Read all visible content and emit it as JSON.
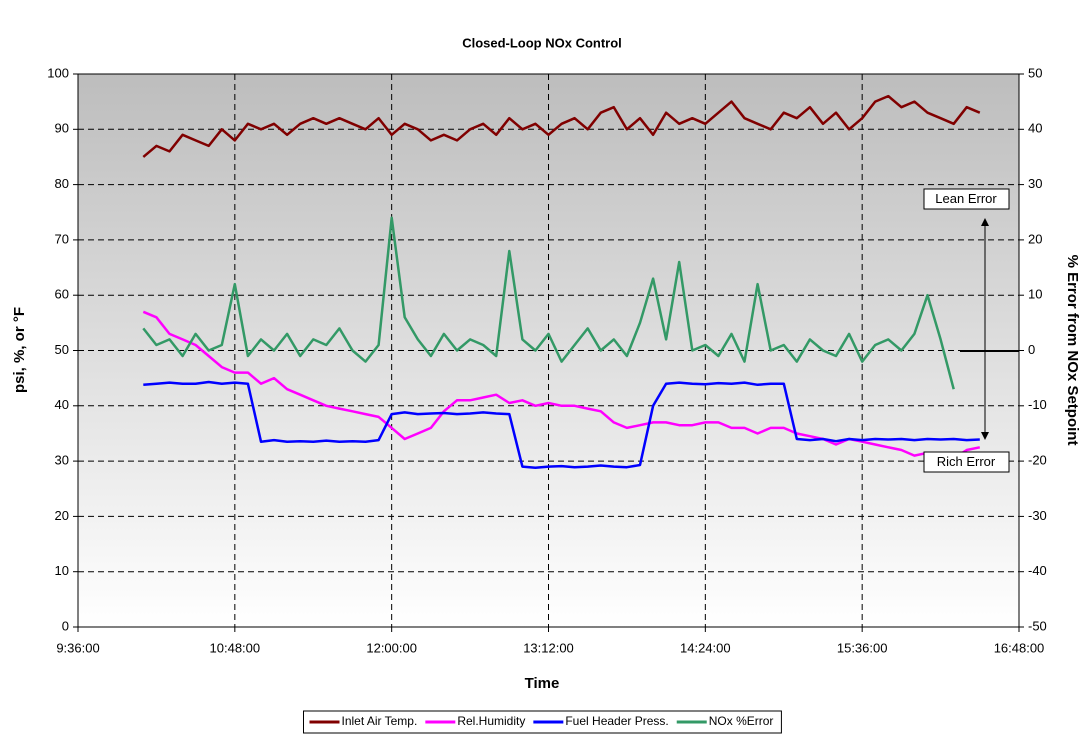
{
  "chart_data": {
    "type": "line",
    "title": "Closed-Loop NOx Control",
    "xlabel": "Time",
    "ylabel": "psi, %, or °F",
    "y2label": "% Error from NOx Setpoint",
    "annotations": [
      "Lean Error",
      "Rich Error"
    ],
    "grid": true,
    "legend": "bottom",
    "xlim": [
      "9:36:00",
      "16:48:00"
    ],
    "xticks": [
      "9:36:00",
      "10:48:00",
      "12:00:00",
      "13:12:00",
      "14:24:00",
      "15:36:00",
      "16:48:00"
    ],
    "ylim": [
      0,
      100
    ],
    "yticks": [
      0,
      10,
      20,
      30,
      40,
      50,
      60,
      70,
      80,
      90,
      100
    ],
    "y2lim": [
      -50,
      50
    ],
    "y2ticks": [
      -50,
      -40,
      -30,
      -20,
      -10,
      0,
      10,
      20,
      30,
      40,
      50
    ],
    "x": [
      "10:06:00",
      "10:12:00",
      "10:18:00",
      "10:24:00",
      "10:30:00",
      "10:36:00",
      "10:42:00",
      "10:48:00",
      "10:54:00",
      "11:00:00",
      "11:06:00",
      "11:12:00",
      "11:18:00",
      "11:24:00",
      "11:30:00",
      "11:36:00",
      "11:42:00",
      "11:48:00",
      "11:54:00",
      "12:00:00",
      "12:06:00",
      "12:12:00",
      "12:18:00",
      "12:24:00",
      "12:30:00",
      "12:36:00",
      "12:42:00",
      "12:48:00",
      "12:54:00",
      "13:00:00",
      "13:06:00",
      "13:12:00",
      "13:18:00",
      "13:24:00",
      "13:30:00",
      "13:36:00",
      "13:42:00",
      "13:48:00",
      "13:54:00",
      "14:00:00",
      "14:06:00",
      "14:12:00",
      "14:18:00",
      "14:24:00",
      "14:30:00",
      "14:36:00",
      "14:42:00",
      "14:48:00",
      "14:54:00",
      "15:00:00",
      "15:06:00",
      "15:12:00",
      "15:18:00",
      "15:24:00",
      "15:30:00",
      "15:36:00",
      "15:42:00",
      "15:48:00",
      "15:54:00",
      "16:00:00",
      "16:06:00",
      "16:12:00",
      "16:18:00",
      "16:24:00",
      "16:30:00"
    ],
    "series": [
      {
        "name": "Inlet Air Temp.",
        "color": "#800000",
        "values": [
          85,
          87,
          86,
          89,
          88,
          87,
          90,
          88,
          91,
          90,
          91,
          89,
          91,
          92,
          91,
          92,
          91,
          90,
          92,
          89,
          91,
          90,
          88,
          89,
          88,
          90,
          91,
          89,
          92,
          90,
          91,
          89,
          91,
          92,
          90,
          93,
          94,
          90,
          92,
          89,
          93,
          91,
          92,
          91,
          93,
          95,
          92,
          91,
          90,
          93,
          92,
          94,
          91,
          93,
          90,
          92,
          95,
          96,
          94,
          95,
          93,
          92,
          91,
          94,
          93
        ]
      },
      {
        "name": "Rel.Humidity",
        "color": "#ff00ff",
        "values": [
          57,
          56,
          53,
          52,
          51,
          49,
          47,
          46,
          46,
          44,
          45,
          43,
          42,
          41,
          40,
          39.5,
          39,
          38.5,
          38,
          36,
          34,
          35,
          36,
          39,
          41,
          41,
          41.5,
          42,
          40.5,
          41,
          40,
          40.5,
          40,
          40,
          39.5,
          39,
          37,
          36,
          36.5,
          37,
          37,
          36.5,
          36.5,
          37,
          37,
          36,
          36,
          35,
          36,
          36,
          35,
          34.5,
          34,
          33,
          34,
          33.5,
          33,
          32.5,
          32,
          31,
          31.5,
          31,
          30.5,
          32,
          32.5
        ]
      },
      {
        "name": "Fuel Header Press.",
        "color": "#0000ff",
        "values": [
          43.8,
          44,
          44.2,
          44,
          44,
          44.3,
          44,
          44.2,
          44,
          33.5,
          33.8,
          33.5,
          33.6,
          33.5,
          33.7,
          33.5,
          33.6,
          33.5,
          33.8,
          38.5,
          38.8,
          38.5,
          38.6,
          38.7,
          38.5,
          38.6,
          38.8,
          38.6,
          38.5,
          29,
          28.8,
          29,
          29.1,
          28.9,
          29,
          29.2,
          29,
          28.9,
          29.3,
          40,
          44,
          44.2,
          44,
          43.9,
          44.1,
          44,
          44.2,
          43.8,
          44,
          44,
          34,
          33.8,
          34,
          33.6,
          34,
          33.8,
          34,
          33.9,
          34,
          33.8,
          34,
          33.9,
          34,
          33.8,
          33.9
        ]
      },
      {
        "name": "NOx %Error",
        "color": "#339966",
        "axis": "y2",
        "values": [
          4,
          1,
          2,
          -1,
          3,
          0,
          1,
          12,
          -1,
          2,
          0,
          3,
          -1,
          2,
          1,
          4,
          0,
          -2,
          1,
          24,
          6,
          2,
          -1,
          3,
          0,
          2,
          1,
          -1,
          18,
          2,
          0,
          3,
          -2,
          1,
          4,
          0,
          2,
          -1,
          5,
          13,
          2,
          16,
          0,
          1,
          -1,
          3,
          -2,
          12,
          0,
          1,
          -2,
          2,
          0,
          -1,
          3,
          -2,
          1,
          2,
          0,
          3,
          10,
          2,
          -7,
          null,
          null
        ]
      }
    ]
  }
}
